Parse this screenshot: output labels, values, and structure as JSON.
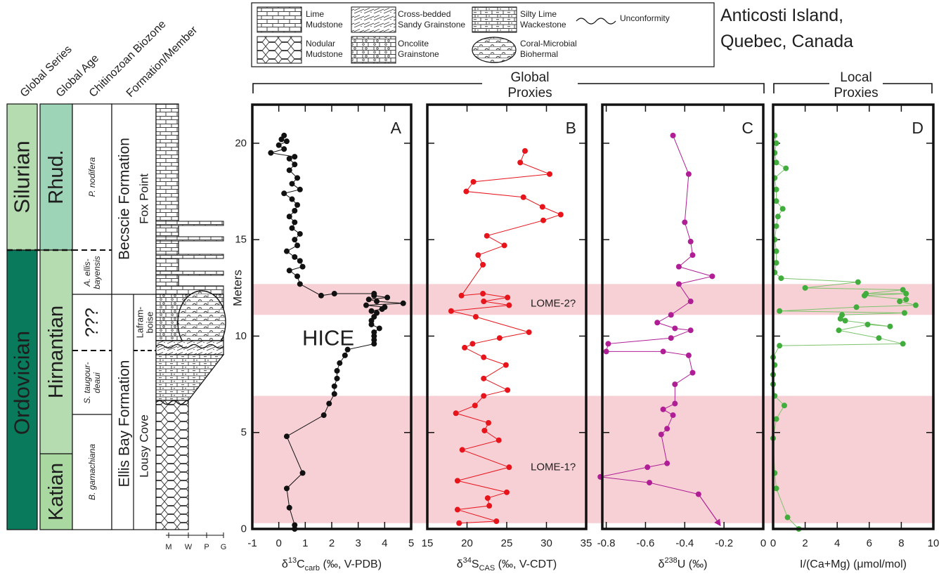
{
  "location": {
    "line1": "Anticosti Island,",
    "line2": "Quebec, Canada"
  },
  "strat_headers": [
    "Global Series",
    "Global Age",
    "Chitinozoan Biozone",
    "Formation/Member"
  ],
  "series": {
    "silurian": "Silurian",
    "ordovician": "Ordovician"
  },
  "ages": {
    "rhud": "Rhud.",
    "hirnantian": "Hirnantian",
    "katian": "Katian"
  },
  "biozones": {
    "nodifera": "P. nodifera",
    "ellis_1": "A. ellis-",
    "ellis_2": "bayensis",
    "unknown": "???",
    "taug_1": "S. taugour-",
    "taug_2": "deaui",
    "gamachiana": "B. gamachiana"
  },
  "formations": {
    "becscie": "Becscie Formation",
    "fox_point": "Fox Point",
    "ellis_bay": "Ellis Bay Formation",
    "lousy_cove": "Lousy Cove",
    "lafram_1": "Lafram-",
    "lafram_2": "boise"
  },
  "grain_scale": [
    "M",
    "W",
    "P",
    "G"
  ],
  "legend": {
    "lime_mudstone": [
      "Lime",
      "Mudstone"
    ],
    "cross_bedded": [
      "Cross-bedded",
      "Sandy Grainstone"
    ],
    "silty_lime": [
      "Silty Lime",
      "Wackestone"
    ],
    "unconformity": "Unconformity",
    "nodular": [
      "Nodular",
      "Mudstone"
    ],
    "oncolite": [
      "Oncolite",
      "Grainstone"
    ],
    "coral": [
      "Coral-Microbial",
      "Biohermal"
    ]
  },
  "groups": {
    "global": [
      "Global",
      "Proxies"
    ],
    "local": [
      "Local",
      "Proxies"
    ]
  },
  "y_axis_label": "Meters",
  "colors": {
    "carbon": "#111111",
    "sulfur": "#e8141c",
    "uranium": "#b01e96",
    "iodine_point": "#40ad3c",
    "iodine_line": "#7cc46d",
    "band": "#f7d0d5",
    "ordovician": "#0a7a5c",
    "silurian": "#b5dcb0",
    "rhud": "#9dd3b7",
    "hirnantian": "#b5dcb0",
    "katian": "#a9d9a0"
  },
  "chart_data": {
    "type": "line",
    "ylim": [
      0,
      22
    ],
    "yticks": [
      0,
      5,
      10,
      15,
      20
    ],
    "ylabel": "Meters",
    "bands": [
      {
        "label": "LOME-2?",
        "ymin": 11.1,
        "ymax": 12.7
      },
      {
        "label": "LOME-1?",
        "ymin": 0.3,
        "ymax": 6.9
      }
    ],
    "annotations": [
      {
        "text": "HICE",
        "panel": "A"
      }
    ],
    "panels": [
      {
        "id": "A",
        "letter": "A",
        "xlabel": {
          "pre": "δ",
          "sup": "13",
          "base": "C",
          "sub": "carb",
          "post": " (‰, V-PDB)"
        },
        "xlim": [
          -1,
          5
        ],
        "xticks": [
          -1,
          0,
          1,
          2,
          3,
          4,
          5
        ],
        "points": [
          [
            0.6,
            0
          ],
          [
            0.6,
            0.2
          ],
          [
            0.4,
            1.1
          ],
          [
            0.3,
            2.1
          ],
          [
            0.9,
            2.9
          ],
          [
            0.3,
            4.8
          ],
          [
            1.7,
            5.9
          ],
          [
            1.9,
            6.5
          ],
          [
            2.1,
            7.0
          ],
          [
            2.1,
            7.4
          ],
          [
            2.2,
            7.8
          ],
          [
            2.2,
            8.2
          ],
          [
            2.3,
            8.6
          ],
          [
            2.5,
            9.0
          ],
          [
            2.6,
            9.3
          ],
          [
            3.6,
            9.6
          ],
          [
            3.6,
            9.8
          ],
          [
            3.6,
            10.0
          ],
          [
            3.6,
            10.2
          ],
          [
            3.8,
            10.4
          ],
          [
            3.5,
            10.6
          ],
          [
            3.5,
            10.8
          ],
          [
            3.6,
            11.0
          ],
          [
            3.7,
            11.2
          ],
          [
            3.5,
            11.3
          ],
          [
            3.9,
            11.4
          ],
          [
            4.0,
            11.5
          ],
          [
            3.3,
            11.6
          ],
          [
            4.7,
            11.7
          ],
          [
            3.7,
            11.8
          ],
          [
            3.4,
            11.9
          ],
          [
            4.1,
            12.0
          ],
          [
            3.6,
            12.1
          ],
          [
            3.6,
            12.2
          ],
          [
            2.1,
            12.2
          ],
          [
            1.6,
            12.1
          ],
          [
            0.8,
            12.7
          ],
          [
            0.7,
            13.1
          ],
          [
            0.4,
            13.4
          ],
          [
            0.9,
            13.6
          ],
          [
            0.8,
            13.9
          ],
          [
            0.6,
            14.1
          ],
          [
            0.3,
            14.4
          ],
          [
            0.7,
            14.7
          ],
          [
            0.6,
            15.0
          ],
          [
            0.8,
            15.3
          ],
          [
            0.5,
            15.6
          ],
          [
            0.6,
            15.9
          ],
          [
            0.4,
            16.2
          ],
          [
            0.6,
            16.5
          ],
          [
            0.7,
            16.8
          ],
          [
            0.5,
            17.1
          ],
          [
            0.2,
            17.4
          ],
          [
            0.8,
            17.6
          ],
          [
            0.5,
            17.9
          ],
          [
            0.7,
            18.2
          ],
          [
            0.4,
            18.6
          ],
          [
            0.6,
            18.9
          ],
          [
            0.4,
            19.2
          ],
          [
            0.6,
            19.3
          ],
          [
            -0.3,
            19.5
          ],
          [
            0.2,
            19.7
          ],
          [
            0.0,
            19.9
          ],
          [
            0.3,
            20.1
          ],
          [
            0.1,
            20.2
          ],
          [
            0.2,
            20.4
          ]
        ]
      },
      {
        "id": "B",
        "letter": "B",
        "xlabel": {
          "pre": "δ",
          "sup": "34",
          "base": "S",
          "sub": "CAS",
          "post": " (‰, V-CDT)"
        },
        "xlim": [
          15,
          35
        ],
        "xticks": [
          15,
          20,
          25,
          30,
          35
        ],
        "points": [
          [
            19.0,
            0.3
          ],
          [
            23.7,
            0.4
          ],
          [
            18.8,
            1.0
          ],
          [
            22.8,
            1.2
          ],
          [
            22.6,
            1.6
          ],
          [
            25.0,
            1.9
          ],
          [
            18.8,
            2.5
          ],
          [
            25.3,
            3.2
          ],
          [
            19.4,
            4.1
          ],
          [
            24.0,
            4.6
          ],
          [
            22.2,
            5.1
          ],
          [
            22.7,
            5.5
          ],
          [
            18.6,
            6.0
          ],
          [
            21.0,
            6.4
          ],
          [
            22.1,
            6.9
          ],
          [
            25.1,
            7.2
          ],
          [
            22.1,
            7.8
          ],
          [
            24.9,
            8.5
          ],
          [
            22.1,
            8.9
          ],
          [
            19.7,
            9.4
          ],
          [
            20.7,
            9.6
          ],
          [
            24.1,
            9.9
          ],
          [
            27.8,
            10.2
          ],
          [
            21.1,
            11.0
          ],
          [
            18.0,
            11.3
          ],
          [
            25.3,
            11.6
          ],
          [
            22.1,
            11.8
          ],
          [
            25.1,
            12.0
          ],
          [
            22.0,
            12.2
          ],
          [
            19.3,
            12.1
          ],
          [
            22.0,
            13.7
          ],
          [
            21.4,
            14.2
          ],
          [
            24.7,
            14.7
          ],
          [
            22.5,
            15.2
          ],
          [
            29.6,
            16.0
          ],
          [
            31.8,
            16.3
          ],
          [
            29.5,
            16.7
          ],
          [
            27.1,
            17.2
          ],
          [
            19.9,
            17.5
          ],
          [
            20.8,
            18.0
          ],
          [
            30.4,
            18.4
          ],
          [
            26.7,
            19.0
          ],
          [
            27.3,
            19.6
          ]
        ]
      },
      {
        "id": "C",
        "letter": "C",
        "xlabel": {
          "pre": "δ",
          "sup": "238",
          "base": "U",
          "sub": "",
          "post": " (‰)"
        },
        "xlim": [
          -0.82,
          0
        ],
        "xticks": [
          -0.8,
          -0.6,
          -0.4,
          -0.2,
          0
        ],
        "arrow_to": [
          -0.22,
          0.2
        ],
        "points": [
          [
            -0.33,
            1.8
          ],
          [
            -0.58,
            2.4
          ],
          [
            -0.83,
            2.7
          ],
          [
            -0.59,
            3.2
          ],
          [
            -0.49,
            3.4
          ],
          [
            -0.52,
            4.9
          ],
          [
            -0.49,
            5.2
          ],
          [
            -0.46,
            5.9
          ],
          [
            -0.51,
            6.2
          ],
          [
            -0.45,
            6.5
          ],
          [
            -0.45,
            7.5
          ],
          [
            -0.36,
            8.1
          ],
          [
            -0.38,
            9.0
          ],
          [
            -0.51,
            9.2
          ],
          [
            -0.8,
            9.2
          ],
          [
            -0.79,
            9.6
          ],
          [
            -0.47,
            9.9
          ],
          [
            -0.37,
            10.3
          ],
          [
            -0.45,
            10.4
          ],
          [
            -0.54,
            10.7
          ],
          [
            -0.47,
            11.1
          ],
          [
            -0.37,
            11.8
          ],
          [
            -0.43,
            12.7
          ],
          [
            -0.26,
            13.1
          ],
          [
            -0.43,
            13.6
          ],
          [
            -0.36,
            14.2
          ],
          [
            -0.37,
            14.9
          ],
          [
            -0.4,
            15.9
          ],
          [
            -0.38,
            18.4
          ],
          [
            -0.46,
            20.4
          ]
        ]
      },
      {
        "id": "D",
        "letter": "D",
        "xlabel": {
          "pre": "I/(Ca+Mg) (μmol/mol)",
          "sup": "",
          "base": "",
          "sub": "",
          "post": ""
        },
        "xlim": [
          0,
          10
        ],
        "xticks": [
          0,
          2,
          4,
          6,
          8,
          10
        ],
        "points": [
          [
            1.6,
            0.0
          ],
          [
            0.9,
            0.6
          ],
          [
            0.2,
            2.1
          ],
          [
            0.1,
            2.9
          ],
          [
            0.0,
            4.7
          ],
          [
            0.2,
            5.7
          ],
          [
            0.7,
            6.4
          ],
          [
            0.1,
            6.9
          ],
          [
            0.0,
            7.5
          ],
          [
            0.0,
            8.0
          ],
          [
            0.1,
            8.5
          ],
          [
            0.0,
            8.9
          ],
          [
            0.4,
            9.5
          ],
          [
            8.1,
            9.6
          ],
          [
            6.6,
            9.9
          ],
          [
            4.1,
            10.3
          ],
          [
            5.9,
            10.6
          ],
          [
            7.3,
            10.5
          ],
          [
            4.5,
            10.8
          ],
          [
            4.2,
            10.9
          ],
          [
            4.3,
            11.1
          ],
          [
            8.2,
            11.2
          ],
          [
            0.4,
            11.3
          ],
          [
            5.2,
            11.5
          ],
          [
            8.9,
            11.6
          ],
          [
            7.9,
            11.8
          ],
          [
            8.3,
            11.9
          ],
          [
            5.7,
            12.1
          ],
          [
            8.3,
            12.2
          ],
          [
            5.8,
            12.2
          ],
          [
            8.1,
            12.4
          ],
          [
            2.0,
            12.5
          ],
          [
            5.3,
            12.8
          ],
          [
            0.5,
            13.0
          ],
          [
            0.1,
            13.3
          ],
          [
            0.2,
            13.8
          ],
          [
            0.2,
            14.4
          ],
          [
            0.1,
            15.0
          ],
          [
            0.2,
            15.7
          ],
          [
            0.3,
            16.2
          ],
          [
            0.6,
            16.6
          ],
          [
            0.2,
            17.0
          ],
          [
            0.2,
            17.6
          ],
          [
            0.1,
            18.2
          ],
          [
            0.8,
            18.7
          ],
          [
            0.2,
            19.0
          ],
          [
            0.1,
            19.5
          ],
          [
            0.2,
            20.0
          ],
          [
            0.1,
            20.4
          ]
        ]
      }
    ]
  }
}
